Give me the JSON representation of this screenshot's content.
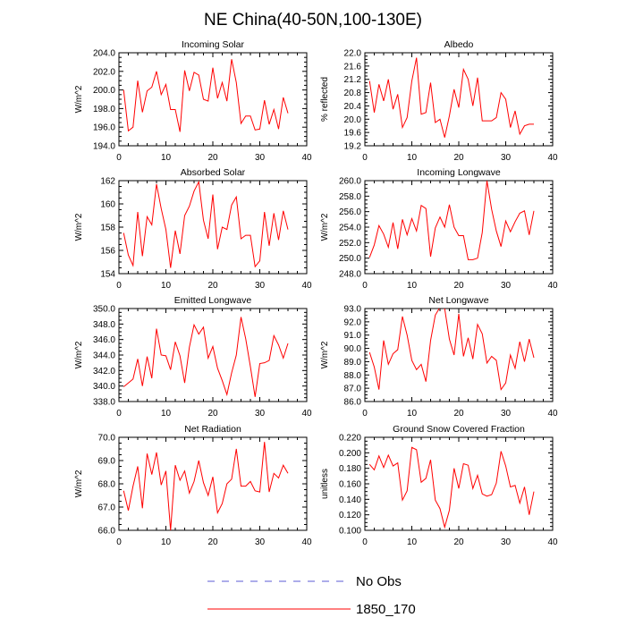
{
  "figure": {
    "title": "NE China(40-50N,100-130E)"
  },
  "legend": {
    "placement": "bottom-center",
    "entries": [
      {
        "label": "No Obs",
        "color": "#5b5bd6",
        "style": "dashed"
      },
      {
        "label": "1850_170",
        "color": "#ff0000",
        "style": "solid"
      }
    ]
  },
  "chart_data": [
    {
      "type": "line",
      "title": "Incoming Solar",
      "ylabel": "W/m^2",
      "xlim": [
        0,
        40
      ],
      "ylim": [
        194,
        204
      ],
      "xticks": [
        0,
        10,
        20,
        30,
        40
      ],
      "yticks": [
        194,
        196,
        198,
        200,
        202,
        204
      ],
      "ytick_labels": [
        "194.0",
        "196.0",
        "198.0",
        "200.0",
        "202.0",
        "204.0"
      ],
      "series": [
        {
          "color": "#ff0000",
          "x": [
            1,
            2,
            3,
            4,
            5,
            6,
            7,
            8,
            9,
            10,
            11,
            12,
            13,
            14,
            15,
            16,
            17,
            18,
            19,
            20,
            21,
            22,
            23,
            24,
            25,
            26,
            27,
            28,
            29,
            30,
            31,
            32,
            33,
            34,
            35,
            36
          ],
          "y": [
            200.0,
            195.6,
            196.0,
            201.0,
            197.6,
            199.9,
            200.3,
            202.0,
            199.5,
            200.6,
            197.9,
            197.9,
            195.5,
            202.1,
            199.9,
            201.9,
            201.6,
            199.0,
            198.8,
            202.4,
            199.1,
            200.8,
            198.8,
            203.3,
            200.8,
            196.4,
            197.2,
            197.2,
            195.7,
            195.8,
            198.9,
            196.3,
            197.9,
            195.8,
            199.2,
            197.5
          ]
        }
      ]
    },
    {
      "type": "line",
      "title": "Albedo",
      "ylabel": "% reflected",
      "xlim": [
        0,
        40
      ],
      "ylim": [
        19.2,
        22.0
      ],
      "xticks": [
        0,
        10,
        20,
        30,
        40
      ],
      "yticks": [
        19.2,
        19.6,
        20.0,
        20.4,
        20.8,
        21.2,
        21.6,
        22.0
      ],
      "ytick_labels": [
        "19.2",
        "19.6",
        "20.0",
        "20.4",
        "20.8",
        "21.2",
        "21.6",
        "22.0"
      ],
      "series": [
        {
          "color": "#ff0000",
          "x": [
            1,
            2,
            3,
            4,
            5,
            6,
            7,
            8,
            9,
            10,
            11,
            12,
            13,
            14,
            15,
            16,
            17,
            18,
            19,
            20,
            21,
            22,
            23,
            24,
            25,
            26,
            27,
            28,
            29,
            30,
            31,
            32,
            33,
            34,
            35,
            36
          ],
          "y": [
            21.15,
            20.2,
            21.05,
            20.55,
            21.2,
            20.3,
            20.75,
            19.75,
            20.05,
            21.15,
            21.85,
            20.15,
            20.2,
            21.1,
            19.9,
            20.0,
            19.45,
            20.1,
            20.9,
            20.35,
            21.5,
            21.2,
            20.4,
            21.25,
            19.95,
            19.95,
            19.95,
            20.05,
            20.8,
            20.6,
            19.75,
            20.25,
            19.55,
            19.8,
            19.85,
            19.85
          ]
        }
      ]
    },
    {
      "type": "line",
      "title": "Absorbed Solar",
      "ylabel": "W/m^2",
      "xlim": [
        0,
        40
      ],
      "ylim": [
        154,
        162
      ],
      "xticks": [
        0,
        10,
        20,
        30,
        40
      ],
      "yticks": [
        154,
        156,
        158,
        160,
        162
      ],
      "ytick_labels": [
        "154",
        "156",
        "158",
        "160",
        "162"
      ],
      "series": [
        {
          "color": "#ff0000",
          "x": [
            1,
            2,
            3,
            4,
            5,
            6,
            7,
            8,
            9,
            10,
            11,
            12,
            13,
            14,
            15,
            16,
            17,
            18,
            19,
            20,
            21,
            22,
            23,
            24,
            25,
            26,
            27,
            28,
            29,
            30,
            31,
            32,
            33,
            34,
            35,
            36
          ],
          "y": [
            157.5,
            155.6,
            154.7,
            159.3,
            155.5,
            158.9,
            158.2,
            161.7,
            159.6,
            157.8,
            154.5,
            157.7,
            155.7,
            159.0,
            159.8,
            161.1,
            161.9,
            158.6,
            157.0,
            160.8,
            156.1,
            158.0,
            157.8,
            159.9,
            160.6,
            157.0,
            157.3,
            157.3,
            154.6,
            155.1,
            159.3,
            156.4,
            159.2,
            156.9,
            159.4,
            157.8
          ]
        }
      ]
    },
    {
      "type": "line",
      "title": "Incoming Longwave",
      "ylabel": "W/m^2",
      "xlim": [
        0,
        40
      ],
      "ylim": [
        248,
        260
      ],
      "xticks": [
        0,
        10,
        20,
        30,
        40
      ],
      "yticks": [
        248,
        250,
        252,
        254,
        256,
        258,
        260
      ],
      "ytick_labels": [
        "248.0",
        "250.0",
        "252.0",
        "254.0",
        "256.0",
        "258.0",
        "260.0"
      ],
      "series": [
        {
          "color": "#ff0000",
          "x": [
            1,
            2,
            3,
            4,
            5,
            6,
            7,
            8,
            9,
            10,
            11,
            12,
            13,
            14,
            15,
            16,
            17,
            18,
            19,
            20,
            21,
            22,
            23,
            24,
            25,
            26,
            27,
            28,
            29,
            30,
            31,
            32,
            33,
            34,
            35,
            36
          ],
          "y": [
            250.1,
            251.7,
            254.2,
            253.1,
            251.4,
            254.6,
            251.2,
            255.0,
            253.0,
            255.1,
            253.5,
            256.8,
            256.4,
            250.2,
            253.9,
            255.3,
            254.0,
            256.9,
            254.0,
            252.9,
            252.9,
            249.8,
            249.8,
            250.0,
            253.3,
            260.0,
            256.3,
            253.5,
            251.5,
            254.8,
            253.4,
            254.7,
            255.8,
            256.1,
            253.0,
            256.1
          ]
        }
      ]
    },
    {
      "type": "line",
      "title": "Emitted Longwave",
      "ylabel": "W/m^2",
      "xlim": [
        0,
        40
      ],
      "ylim": [
        338,
        350
      ],
      "xticks": [
        0,
        10,
        20,
        30,
        40
      ],
      "yticks": [
        338,
        340,
        342,
        344,
        346,
        348,
        350
      ],
      "ytick_labels": [
        "338.0",
        "340.0",
        "342.0",
        "344.0",
        "346.0",
        "348.0",
        "350.0"
      ],
      "series": [
        {
          "color": "#ff0000",
          "x": [
            1,
            2,
            3,
            4,
            5,
            6,
            7,
            8,
            9,
            10,
            11,
            12,
            13,
            14,
            15,
            16,
            17,
            18,
            19,
            20,
            21,
            22,
            23,
            24,
            25,
            26,
            27,
            28,
            29,
            30,
            31,
            32,
            33,
            34,
            35,
            36
          ],
          "y": [
            339.9,
            340.4,
            340.9,
            343.5,
            340.0,
            343.8,
            341.0,
            347.4,
            344.0,
            343.9,
            342.1,
            345.7,
            343.9,
            340.4,
            345.0,
            347.9,
            346.7,
            347.6,
            343.6,
            345.1,
            342.3,
            340.7,
            338.9,
            341.7,
            344.0,
            348.9,
            346.1,
            342.5,
            338.6,
            342.9,
            343.0,
            343.3,
            346.5,
            345.3,
            343.6,
            345.5
          ]
        }
      ]
    },
    {
      "type": "line",
      "title": "Net Longwave",
      "ylabel": "W/m^2",
      "xlim": [
        0,
        40
      ],
      "ylim": [
        86,
        93
      ],
      "xticks": [
        0,
        10,
        20,
        30,
        40
      ],
      "yticks": [
        86,
        87,
        88,
        89,
        90,
        91,
        92,
        93
      ],
      "ytick_labels": [
        "86.0",
        "87.0",
        "88.0",
        "89.0",
        "90.0",
        "91.0",
        "92.0",
        "93.0"
      ],
      "series": [
        {
          "color": "#ff0000",
          "x": [
            1,
            2,
            3,
            4,
            5,
            6,
            7,
            8,
            9,
            10,
            11,
            12,
            13,
            14,
            15,
            16,
            17,
            18,
            19,
            20,
            21,
            22,
            23,
            24,
            25,
            26,
            27,
            28,
            29,
            30,
            31,
            32,
            33,
            34,
            35,
            36
          ],
          "y": [
            89.7,
            88.6,
            86.9,
            90.6,
            88.8,
            89.6,
            89.9,
            92.4,
            91.0,
            89.1,
            88.4,
            88.8,
            87.5,
            90.6,
            92.5,
            93.1,
            93.0,
            90.7,
            89.5,
            92.6,
            89.4,
            90.8,
            89.2,
            91.8,
            91.1,
            88.9,
            89.4,
            89.1,
            86.9,
            87.4,
            89.5,
            88.5,
            90.5,
            89.0,
            90.7,
            89.3
          ]
        }
      ]
    },
    {
      "type": "line",
      "title": "Net Radiation",
      "ylabel": "W/m^2",
      "xlim": [
        0,
        40
      ],
      "ylim": [
        66,
        70
      ],
      "xticks": [
        0,
        10,
        20,
        30,
        40
      ],
      "yticks": [
        66,
        67,
        68,
        69,
        70
      ],
      "ytick_labels": [
        "66.0",
        "67.0",
        "68.0",
        "69.0",
        "70.0"
      ],
      "series": [
        {
          "color": "#ff0000",
          "x": [
            1,
            2,
            3,
            4,
            5,
            6,
            7,
            8,
            9,
            10,
            11,
            12,
            13,
            14,
            15,
            16,
            17,
            18,
            19,
            20,
            21,
            22,
            23,
            24,
            25,
            26,
            27,
            28,
            29,
            30,
            31,
            32,
            33,
            34,
            35,
            36
          ],
          "y": [
            67.7,
            66.85,
            67.9,
            68.75,
            66.95,
            69.3,
            68.4,
            69.35,
            67.95,
            68.55,
            66.0,
            68.8,
            68.15,
            68.55,
            67.6,
            68.1,
            69.0,
            68.05,
            67.5,
            68.3,
            66.75,
            67.15,
            68.0,
            68.2,
            69.5,
            67.9,
            67.9,
            68.1,
            67.7,
            67.65,
            69.8,
            67.65,
            68.45,
            68.25,
            68.8,
            68.45
          ]
        }
      ]
    },
    {
      "type": "line",
      "title": "Ground Snow Covered Fraction",
      "ylabel": "unitless",
      "xlim": [
        0,
        40
      ],
      "ylim": [
        0.1,
        0.22
      ],
      "xticks": [
        0,
        10,
        20,
        30,
        40
      ],
      "yticks": [
        0.1,
        0.12,
        0.14,
        0.16,
        0.18,
        0.2,
        0.22
      ],
      "ytick_labels": [
        "0.100",
        "0.120",
        "0.140",
        "0.160",
        "0.180",
        "0.200",
        "0.220"
      ],
      "series": [
        {
          "color": "#ff0000",
          "x": [
            1,
            2,
            3,
            4,
            5,
            6,
            7,
            8,
            9,
            10,
            11,
            12,
            13,
            14,
            15,
            16,
            17,
            18,
            19,
            20,
            21,
            22,
            23,
            24,
            25,
            26,
            27,
            28,
            29,
            30,
            31,
            32,
            33,
            34,
            35,
            36
          ],
          "y": [
            0.185,
            0.178,
            0.196,
            0.181,
            0.197,
            0.183,
            0.187,
            0.139,
            0.151,
            0.207,
            0.204,
            0.162,
            0.167,
            0.191,
            0.139,
            0.128,
            0.104,
            0.126,
            0.18,
            0.154,
            0.186,
            0.184,
            0.154,
            0.171,
            0.147,
            0.144,
            0.146,
            0.161,
            0.202,
            0.183,
            0.156,
            0.158,
            0.135,
            0.156,
            0.12,
            0.15
          ]
        }
      ]
    }
  ]
}
